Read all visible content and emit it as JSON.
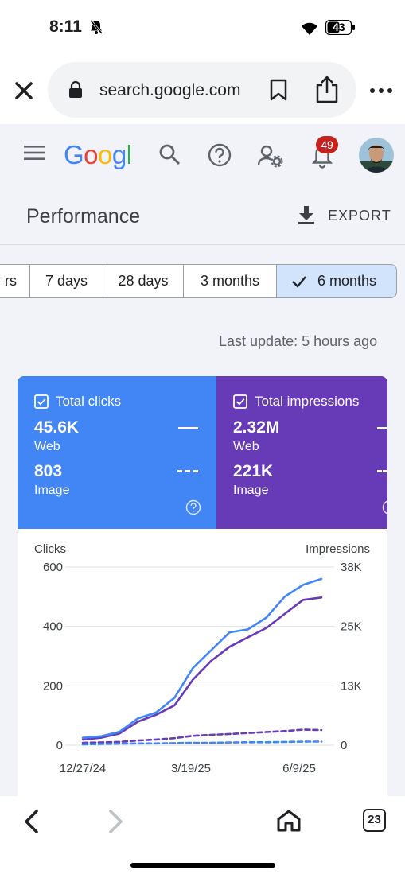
{
  "status_bar": {
    "time": "8:11",
    "battery": "43"
  },
  "browser": {
    "url": "search.google.com",
    "tab_count": "23"
  },
  "header": {
    "logo_text": "Googl",
    "notification_count": "49"
  },
  "performance": {
    "title": "Performance",
    "export_label": "EXPORT"
  },
  "date_ranges": {
    "items": [
      "rs",
      "7 days",
      "28 days",
      "3 months",
      "6 months"
    ],
    "selected": "6 months"
  },
  "last_update": "Last update: 5 hours ago",
  "metrics": {
    "clicks": {
      "title": "Total clicks",
      "web_value": "45.6K",
      "web_label": "Web",
      "image_value": "803",
      "image_label": "Image",
      "color": "#4285f4"
    },
    "impressions": {
      "title": "Total impressions",
      "web_value": "2.32M",
      "web_label": "Web",
      "image_value": "221K",
      "image_label": "Image",
      "color": "#673ab7"
    }
  },
  "chart_data": {
    "type": "line",
    "ylabel_left": "Clicks",
    "ylabel_right": "Impressions",
    "y_left_ticks": [
      "0",
      "200",
      "400",
      "600"
    ],
    "y_right_ticks": [
      "0",
      "13K",
      "25K",
      "38K"
    ],
    "ylim_left": [
      0,
      600
    ],
    "ylim_right": [
      0,
      38000
    ],
    "x_ticks": [
      "12/27/24",
      "3/19/25",
      "6/9/25"
    ],
    "x": [
      "12/27/24",
      "1/10/25",
      "1/24/25",
      "2/7/25",
      "2/21/25",
      "3/7/25",
      "3/19/25",
      "4/2/25",
      "4/16/25",
      "4/30/25",
      "5/14/25",
      "5/28/25",
      "6/9/25",
      "6/13/25"
    ],
    "series": [
      {
        "values": [
          25,
          30,
          45,
          90,
          110,
          160,
          260,
          320,
          380,
          390,
          430,
          500,
          540,
          560
        ],
        "color": "#4285f4",
        "axis": "left",
        "style": "solid"
      },
      {
        "values": [
          1200,
          1600,
          2500,
          5000,
          6500,
          8500,
          14000,
          18000,
          21000,
          23000,
          25000,
          28000,
          31000,
          31500
        ],
        "color": "#673ab7",
        "axis": "right",
        "style": "solid"
      },
      {
        "values": [
          3,
          4,
          5,
          6,
          6,
          7,
          8,
          8,
          9,
          10,
          10,
          11,
          12,
          12
        ],
        "color": "#4285f4",
        "axis": "left",
        "style": "dashed"
      },
      {
        "values": [
          500,
          600,
          700,
          1000,
          1200,
          1500,
          2000,
          2200,
          2400,
          2600,
          2800,
          3000,
          3300,
          3200
        ],
        "color": "#673ab7",
        "axis": "right",
        "style": "dashed"
      }
    ],
    "grid": true
  }
}
